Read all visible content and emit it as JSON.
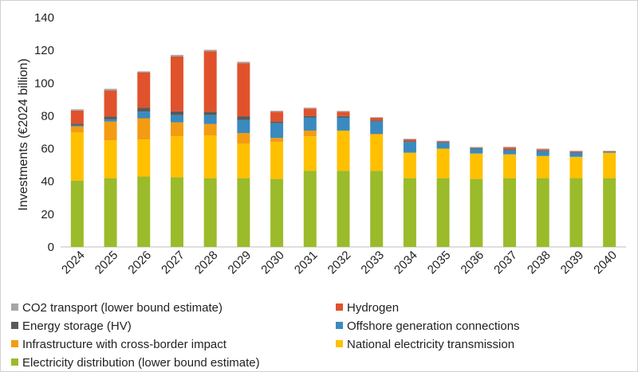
{
  "chart_data": {
    "type": "stacked-bar",
    "title": "",
    "xlabel": "",
    "ylabel": "Investments (€2024 billion)",
    "ylim": [
      0,
      140
    ],
    "yticks": [
      0,
      20,
      40,
      60,
      80,
      100,
      120,
      140
    ],
    "grid": false,
    "legend_position": "bottom",
    "categories": [
      "2024",
      "2025",
      "2026",
      "2027",
      "2028",
      "2029",
      "2030",
      "2031",
      "2032",
      "2033",
      "2034",
      "2035",
      "2036",
      "2037",
      "2038",
      "2039",
      "2040"
    ],
    "series": [
      {
        "name": "Electricity distribution (lower bound estimate)",
        "color": "#9bbb2b",
        "values": [
          40.5,
          42,
          43,
          42.5,
          42,
          42,
          41.5,
          46.5,
          46.5,
          46.5,
          42,
          42,
          41.5,
          42,
          42,
          42,
          42
        ]
      },
      {
        "name": "National electricity transmission",
        "color": "#ffc000",
        "values": [
          29.5,
          23,
          22.5,
          25,
          26,
          21,
          22.5,
          21,
          24.5,
          22,
          15.5,
          18,
          15.5,
          14.5,
          13.5,
          13,
          15.5
        ]
      },
      {
        "name": "Infrastructure with cross-border impact",
        "color": "#f39c12",
        "values": [
          3.5,
          11.5,
          13,
          8.5,
          7,
          6.5,
          2.5,
          3.5,
          0,
          0.5,
          0,
          0,
          0,
          0,
          0,
          0,
          0
        ]
      },
      {
        "name": "Offshore generation connections",
        "color": "#3a8abf",
        "values": [
          0.5,
          1.5,
          4,
          4.5,
          5.5,
          8,
          9,
          8,
          8,
          7.5,
          6.5,
          3.5,
          3,
          2.5,
          3,
          2.5,
          0.5
        ]
      },
      {
        "name": "Energy storage (HV)",
        "color": "#595959",
        "values": [
          1.2,
          1.5,
          2.5,
          2.2,
          2,
          2.2,
          1,
          0.9,
          0.8,
          0.7,
          0.6,
          0.5,
          0.4,
          0.5,
          0.4,
          0.4,
          0.3
        ]
      },
      {
        "name": "Hydrogen",
        "color": "#e0522c",
        "values": [
          8,
          16,
          21.5,
          33.5,
          37,
          32.5,
          6,
          4.5,
          2.7,
          1.6,
          1,
          0.4,
          0.3,
          1.2,
          0.8,
          0.5,
          0.1
        ]
      },
      {
        "name": "CO2 transport (lower bound estimate)",
        "color": "#a6a6a6",
        "values": [
          0.8,
          1,
          0.7,
          1,
          0.8,
          0.8,
          0.6,
          0.6,
          0.5,
          0.4,
          0.4,
          0.4,
          0.3,
          0.4,
          0.3,
          0.3,
          0.3
        ]
      }
    ],
    "legend_order": [
      "CO2 transport (lower bound estimate)",
      "Hydrogen",
      "Energy storage (HV)",
      "Offshore generation connections",
      "Infrastructure with cross-border impact",
      "National electricity transmission",
      "Electricity distribution (lower bound estimate)"
    ]
  }
}
